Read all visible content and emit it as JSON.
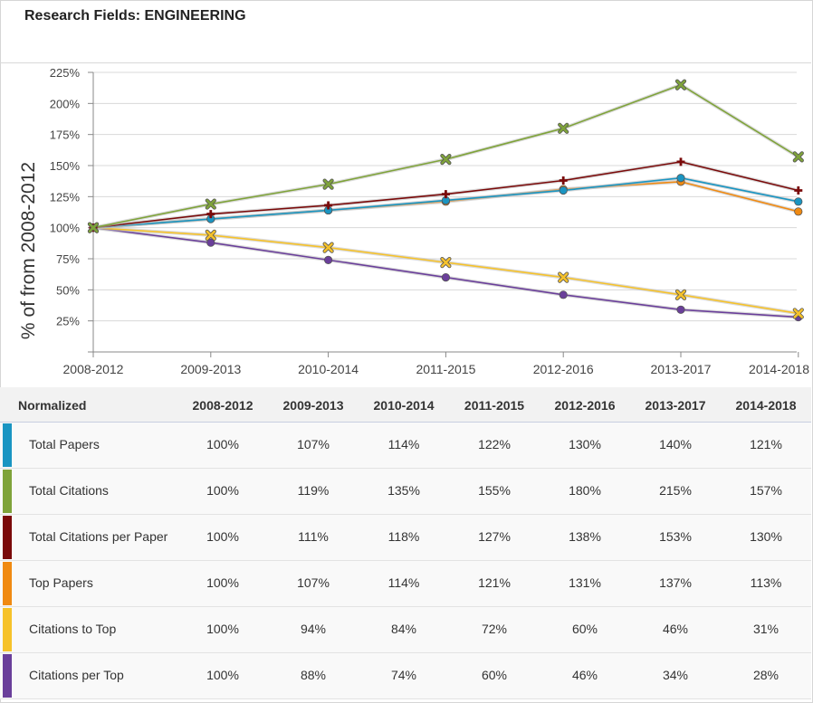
{
  "title": "Research Fields: ENGINEERING",
  "table": {
    "header_label": "Normalized",
    "columns": [
      "2008-2012",
      "2009-2013",
      "2010-2014",
      "2011-2015",
      "2012-2016",
      "2013-2017",
      "2014-2018"
    ],
    "rows": [
      {
        "label": "Total Papers",
        "values": [
          "100%",
          "107%",
          "114%",
          "122%",
          "130%",
          "140%",
          "121%"
        ]
      },
      {
        "label": "Total Citations",
        "values": [
          "100%",
          "119%",
          "135%",
          "155%",
          "180%",
          "215%",
          "157%"
        ]
      },
      {
        "label": "Total Citations per Paper",
        "values": [
          "100%",
          "111%",
          "118%",
          "127%",
          "138%",
          "153%",
          "130%"
        ]
      },
      {
        "label": "Top Papers",
        "values": [
          "100%",
          "107%",
          "114%",
          "121%",
          "131%",
          "137%",
          "113%"
        ]
      },
      {
        "label": "Citations to Top",
        "values": [
          "100%",
          "94%",
          "84%",
          "72%",
          "60%",
          "46%",
          "31%"
        ]
      },
      {
        "label": "Citations per Top",
        "values": [
          "100%",
          "88%",
          "74%",
          "60%",
          "46%",
          "34%",
          "28%"
        ]
      }
    ]
  },
  "chart_data": {
    "type": "line",
    "ylabel": "% of from 2008-2012",
    "xlabel": "",
    "categories": [
      "2008-2012",
      "2009-2013",
      "2010-2014",
      "2011-2015",
      "2012-2016",
      "2013-2017",
      "2014-2018"
    ],
    "yticks": [
      "225%",
      "200%",
      "175%",
      "150%",
      "125%",
      "100%",
      "75%",
      "50%",
      "25%"
    ],
    "ylim": [
      0,
      225
    ],
    "grid": true,
    "series": [
      {
        "name": "Total Papers",
        "color": "#1a95c2",
        "marker": "circle",
        "values": [
          100,
          107,
          114,
          122,
          130,
          140,
          121
        ]
      },
      {
        "name": "Total Citations",
        "color": "#7fa33a",
        "marker": "x",
        "values": [
          100,
          119,
          135,
          155,
          180,
          215,
          157
        ]
      },
      {
        "name": "Total Citations per Paper",
        "color": "#7a0a0a",
        "marker": "cross",
        "values": [
          100,
          111,
          118,
          127,
          138,
          153,
          130
        ]
      },
      {
        "name": "Top Papers",
        "color": "#f08a12",
        "marker": "circle",
        "values": [
          100,
          107,
          114,
          121,
          131,
          137,
          113
        ]
      },
      {
        "name": "Citations to Top",
        "color": "#f6c22a",
        "marker": "x",
        "values": [
          100,
          94,
          84,
          72,
          60,
          46,
          31
        ]
      },
      {
        "name": "Citations per Top",
        "color": "#6a3f9a",
        "marker": "circle",
        "values": [
          100,
          88,
          74,
          60,
          46,
          34,
          28
        ]
      }
    ]
  }
}
